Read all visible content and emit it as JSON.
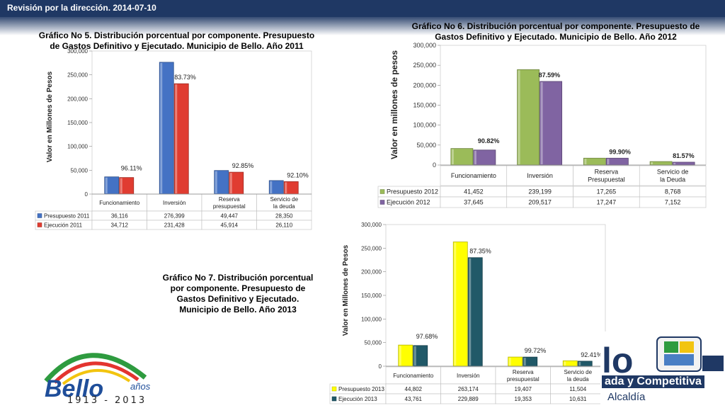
{
  "header": {
    "title": "Revisión por la dirección. 2014-07-10"
  },
  "slogan": "ada y Competitiva",
  "alcaldia": "Alcaldía",
  "bello_logo": {
    "years": "1913 - 2013",
    "anos": "años",
    "wordmark": "Bello",
    "icon": "bello-100-logo-icon"
  },
  "chart_data": [
    {
      "id": "c2011",
      "type": "bar",
      "title": "Gráfico No 5. Distribución porcentual por componente. Presupuesto de Gastos Definitivo y Ejecutado. Municipio de Bello. Año 2011",
      "ylabel": "Valor en Millones de Pesos",
      "ylim": [
        0,
        300000
      ],
      "ticks": [
        "0",
        "50,000",
        "100,000",
        "150,000",
        "200,000",
        "250,000",
        "300,000"
      ],
      "tick_values": [
        0,
        50000,
        100000,
        150000,
        200000,
        250000,
        300000
      ],
      "categories": [
        "Funcionamiento",
        "Inversión",
        "Reserva presupuestal",
        "Servicio de la deuda"
      ],
      "series": [
        {
          "name": "Presupuesto 2011",
          "values": [
            36116,
            276399,
            49447,
            28350
          ],
          "labels": [
            "36,116",
            "276,399",
            "49,447",
            "28,350"
          ],
          "color": "#4472c4"
        },
        {
          "name": "Ejecución 2011",
          "values": [
            34712,
            231428,
            45914,
            26110
          ],
          "labels": [
            "34,712",
            "231,428",
            "45,914",
            "26,110"
          ],
          "color": "#e03c31"
        }
      ],
      "percents": [
        "96.11%",
        "83.73%",
        "92.85%",
        "92.10%"
      ]
    },
    {
      "id": "c2012",
      "type": "bar",
      "title": "Gráfico No 6. Distribución porcentual por componente. Presupuesto de Gastos Definitivo y Ejecutado. Municipio de Bello. Año 2012",
      "ylabel": "Valor en millones de pesos",
      "ylim": [
        0,
        300000
      ],
      "ticks": [
        "0",
        "50,000",
        "100,000",
        "150,000",
        "200,000",
        "250,000",
        "300,000"
      ],
      "tick_values": [
        0,
        50000,
        100000,
        150000,
        200000,
        250000,
        300000
      ],
      "categories": [
        "Funcionamiento",
        "Inversión",
        "Reserva Presupuestal",
        "Servicio de la Deuda"
      ],
      "series": [
        {
          "name": "Presupuesto 2012",
          "values": [
            41452,
            239199,
            17265,
            8768
          ],
          "labels": [
            "41,452",
            "239,199",
            "17,265",
            "8,768"
          ],
          "color": "#9bbb59"
        },
        {
          "name": "Ejecución 2012",
          "values": [
            37645,
            209517,
            17247,
            7152
          ],
          "labels": [
            "37,645",
            "209,517",
            "17,247",
            "7,152"
          ],
          "color": "#8064a2"
        }
      ],
      "percents": [
        "90.82%",
        "87.59%",
        "99.90%",
        "81.57%"
      ]
    },
    {
      "id": "c2013",
      "type": "bar",
      "title": "Gráfico No 7. Distribución porcentual por componente. Presupuesto de Gastos Definitivo y Ejecutado. Municipio de Bello. Año 2013",
      "ylabel": "Valor en Millones de Pesos",
      "ylim": [
        0,
        300000
      ],
      "ticks": [
        "0",
        "50,000",
        "100,000",
        "150,000",
        "200,000",
        "250,000",
        "300,000"
      ],
      "tick_values": [
        0,
        50000,
        100000,
        150000,
        200000,
        250000,
        300000
      ],
      "categories": [
        "Funcionamiento",
        "Inversión",
        "Reserva presupuestal",
        "Servicio de la deuda"
      ],
      "series": [
        {
          "name": "Presupuesto 2013",
          "values": [
            44802,
            263174,
            19407,
            11504
          ],
          "labels": [
            "44,802",
            "263,174",
            "19,407",
            "11,504"
          ],
          "color": "#ffff00"
        },
        {
          "name": "Ejecución 2013",
          "values": [
            43761,
            229889,
            19353,
            10631
          ],
          "labels": [
            "43,761",
            "229,889",
            "19,353",
            "10,631"
          ],
          "color": "#215968"
        }
      ],
      "percents": [
        "97.68%",
        "87.35%",
        "99.72%",
        "92.41%"
      ]
    }
  ]
}
